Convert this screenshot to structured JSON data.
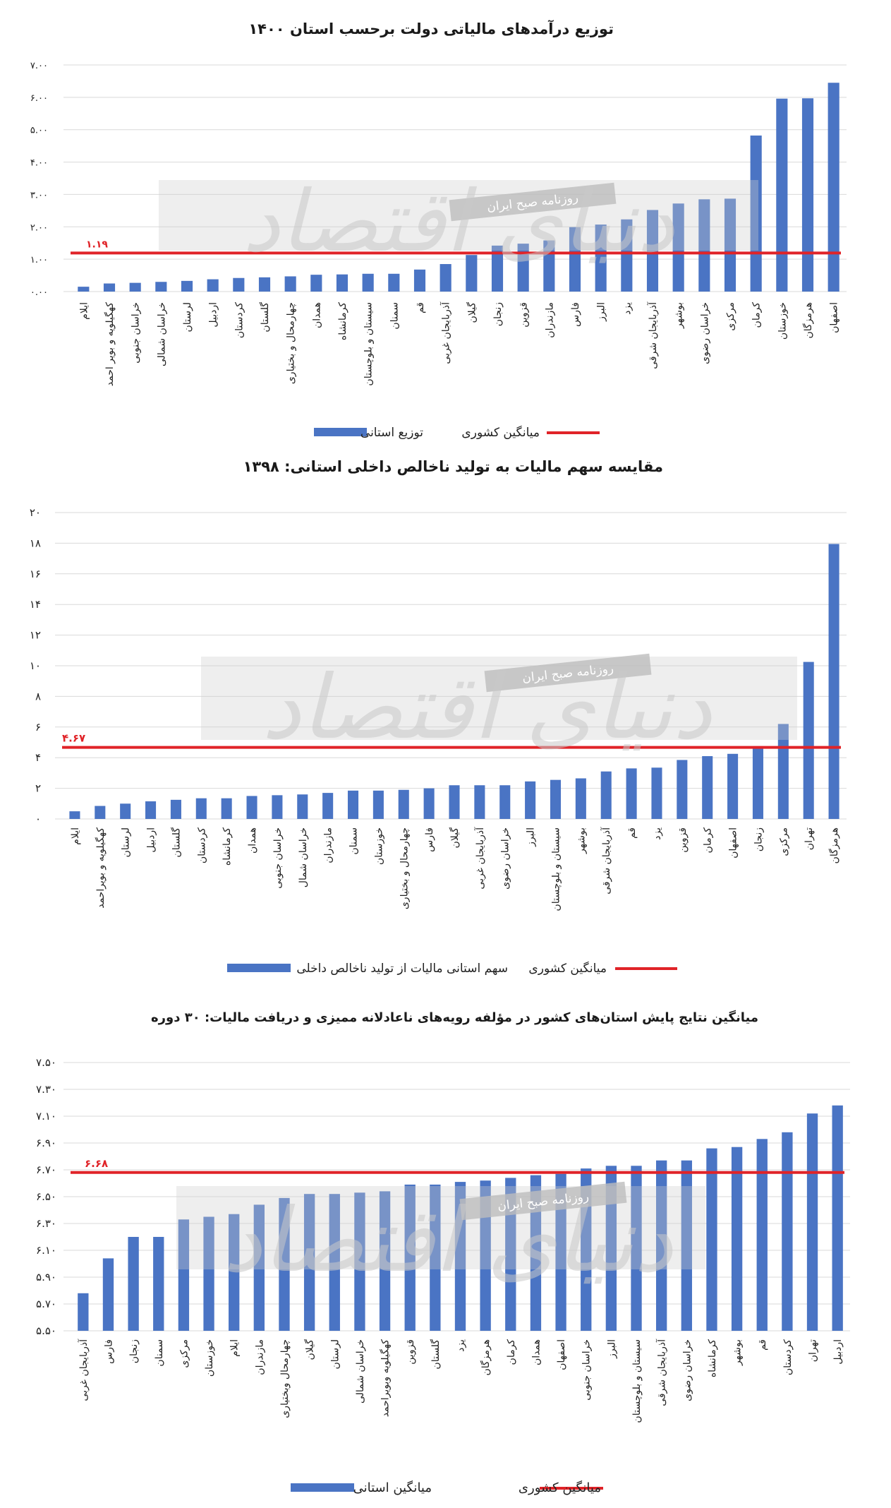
{
  "colors": {
    "bar": "#4a74c4",
    "bar_light": "#7e9fdc",
    "average_line": "#e02328",
    "grid": "#d9d9d9",
    "watermark_band": "#cfcfcf"
  },
  "watermark": {
    "brand": "دنیای اقتصاد",
    "newspaper": "روزنامه صبح ایران"
  },
  "chart_data": [
    {
      "type": "bar",
      "title": "توزیع درآمدهای مالیاتی دولت برحسب استان ۱۴۰۰",
      "categories": [
        "ایلام",
        "کهگیلویه و بویر احمد",
        "خراسان جنوبی",
        "خراسان شمالی",
        "لرستان",
        "اردبیل",
        "کردستان",
        "گلستان",
        "چهارمحال و بختیاری",
        "همدان",
        "کرمانشاه",
        "سیستان و بلوچستان",
        "سمنان",
        "قم",
        "آذربایجان غربی",
        "گیلان",
        "زنجان",
        "قزوین",
        "مازندران",
        "فارس",
        "البرز",
        "یزد",
        "آذربایجان شرقی",
        "بوشهر",
        "خراسان رضوی",
        "مرکزی",
        "کرمان",
        "خوزستان",
        "هرمزگان",
        "اصفهان"
      ],
      "values": [
        0.15,
        0.25,
        0.27,
        0.3,
        0.33,
        0.38,
        0.42,
        0.44,
        0.47,
        0.52,
        0.53,
        0.55,
        0.55,
        0.68,
        0.85,
        1.13,
        1.42,
        1.48,
        1.58,
        1.99,
        2.07,
        2.23,
        2.52,
        2.72,
        2.85,
        2.87,
        4.82,
        5.96,
        5.97,
        6.45
      ],
      "ytick_labels": [
        "۰.۰۰",
        "۱.۰۰",
        "۲.۰۰",
        "۳.۰۰",
        "۴.۰۰",
        "۵.۰۰",
        "۶.۰۰",
        "۷.۰۰"
      ],
      "ylim": [
        0,
        7
      ],
      "average": 1.19,
      "average_label": "۱.۱۹",
      "legend": {
        "series": "توزیع استانی",
        "average": "میانگین کشوری"
      },
      "grid": true
    },
    {
      "type": "bar",
      "title": "مقایسه سهم مالیات به تولید ناخالص داخلی استانی: ۱۳۹۸",
      "categories": [
        "ایلام",
        "کهگیلویه و بویراحمد",
        "لرستان",
        "اردبیل",
        "گلستان",
        "کردستان",
        "کرمانشاه",
        "همدان",
        "خراسان جنوبی",
        "خراسان شمال",
        "مازندران",
        "سمنان",
        "خوزستان",
        "چهارمحال و بختیاری",
        "فارس",
        "گیلان",
        "آذربایجان غربی",
        "خراسان رضوی",
        "البرز",
        "سیستان و بلوچستان",
        "بوشهر",
        "آذربایجان شرقی",
        "قم",
        "یزد",
        "قزوین",
        "کرمان",
        "اصفهان",
        "زنجان",
        "مرکزی",
        "تهران",
        "هرمزگان"
      ],
      "values": [
        0.5,
        0.85,
        1.0,
        1.15,
        1.25,
        1.35,
        1.35,
        1.5,
        1.55,
        1.6,
        1.7,
        1.85,
        1.85,
        1.9,
        2.0,
        2.2,
        2.2,
        2.2,
        2.45,
        2.55,
        2.65,
        3.1,
        3.3,
        3.35,
        3.85,
        4.1,
        4.25,
        4.75,
        6.2,
        10.25,
        17.95
      ],
      "ytick_labels": [
        "۰",
        "۲",
        "۴",
        "۶",
        "۸",
        "۱۰",
        "۱۲",
        "۱۴",
        "۱۶",
        "۱۸",
        "۲۰"
      ],
      "ylim": [
        0,
        20
      ],
      "average": 4.67,
      "average_label": "۴.۶۷",
      "legend": {
        "series": "سهم استانی مالیات از تولید ناخالص داخلی",
        "average": "میانگین کشوری"
      },
      "grid": true
    },
    {
      "type": "bar",
      "title": "میانگین نتایج پایش استان‌های کشور در مؤلفه رویه‌های ناعادلانه ممیزی و دریافت مالیات: ۳۰ دوره",
      "categories": [
        "آذربایجان غربی",
        "فارس",
        "زنجان",
        "سمنان",
        "مرکزی",
        "خوزستان",
        "ایلام",
        "مازندران",
        "چهارمحال وبختیاری",
        "گیلان",
        "لرستان",
        "خراسان شمالی",
        "کهگیلویه وبویراحمد",
        "قزوین",
        "گلستان",
        "یزد",
        "هرمزگان",
        "کرمان",
        "همدان",
        "اصفهان",
        "خراسان جنوبی",
        "البرز",
        "سیستان و بلوچستان",
        "آذربایجان شرقی",
        "خراسان رضوی",
        "کرمانشاه",
        "بوشهر",
        "قم",
        "کردستان",
        "تهران",
        "اردبیل"
      ],
      "values": [
        5.78,
        6.04,
        6.2,
        6.2,
        6.33,
        6.35,
        6.37,
        6.44,
        6.49,
        6.52,
        6.52,
        6.53,
        6.54,
        6.59,
        6.59,
        6.61,
        6.62,
        6.64,
        6.66,
        6.67,
        6.71,
        6.73,
        6.73,
        6.77,
        6.77,
        6.86,
        6.87,
        6.93,
        6.98,
        7.12,
        7.18
      ],
      "ytick_labels": [
        "۵.۵۰",
        "۵.۷۰",
        "۵.۹۰",
        "۶.۱۰",
        "۶.۳۰",
        "۶.۵۰",
        "۶.۷۰",
        "۶.۹۰",
        "۷.۱۰",
        "۷.۳۰",
        "۷.۵۰"
      ],
      "ylim": [
        5.5,
        7.5
      ],
      "average": 6.68,
      "average_label": "۶.۶۸",
      "legend": {
        "series": "میانگین استانی",
        "average": "میانگین کشوری"
      },
      "grid": true
    }
  ]
}
